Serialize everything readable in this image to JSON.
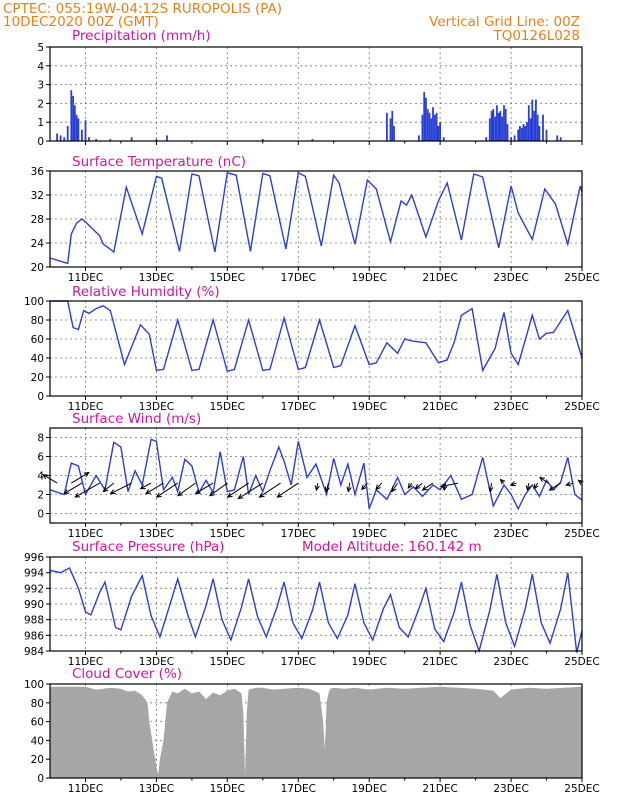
{
  "header": {
    "left_line1": "CPTEC:   055:19W-04:12S   RUROPOLIS (PA)",
    "left_line2": "10DEC2020 00Z (GMT)",
    "right_line1": "Vertical Grid Line: 00Z",
    "right_line2": "TQ0126L028"
  },
  "colors": {
    "header_text": "#e8801a",
    "panel_title": "#d4149c",
    "series_line": "#2a3fd4",
    "precip_bars": "#2a3fd4",
    "wind_arrows": "#000000",
    "cloud_fill": "#a6a6a6"
  },
  "chart_data": [
    {
      "id": "precip",
      "type": "bar",
      "title": "Precipitation (mm/h)",
      "x_range": [
        10,
        25
      ],
      "ylim": [
        0,
        5
      ],
      "yticks": [
        0,
        1,
        2,
        3,
        4,
        5
      ],
      "grid": true,
      "show_xlabels": false,
      "x": [
        10.2,
        10.3,
        10.4,
        10.5,
        10.6,
        10.65,
        10.7,
        10.75,
        10.8,
        10.9,
        11.0,
        11.1,
        11.3,
        11.7,
        12.3,
        13.0,
        13.3,
        16.0,
        17.4,
        19.5,
        19.6,
        19.65,
        19.7,
        20.4,
        20.5,
        20.55,
        20.6,
        20.65,
        20.7,
        20.75,
        20.8,
        20.85,
        20.9,
        20.95,
        21.0,
        21.1,
        22.3,
        22.4,
        22.45,
        22.5,
        22.55,
        22.6,
        22.65,
        22.7,
        22.75,
        22.8,
        22.85,
        22.9,
        23.0,
        23.1,
        23.2,
        23.25,
        23.3,
        23.35,
        23.4,
        23.45,
        23.5,
        23.55,
        23.6,
        23.65,
        23.7,
        23.75,
        23.8,
        23.9,
        24.0,
        24.3,
        24.4
      ],
      "values": [
        0.4,
        0.3,
        0.2,
        0.8,
        2.7,
        2.4,
        1.9,
        1.4,
        1.2,
        0.6,
        1.1,
        0.2,
        0.1,
        0.1,
        0.2,
        0.1,
        0.3,
        0.1,
        0.1,
        1.5,
        1.2,
        1.6,
        0.8,
        0.3,
        1.4,
        2.6,
        2.3,
        1.7,
        1.5,
        1.2,
        1.8,
        1.4,
        1.5,
        0.8,
        1.0,
        0.2,
        0.2,
        1.2,
        1.6,
        1.7,
        1.3,
        1.9,
        1.5,
        1.6,
        1.3,
        1.9,
        1.7,
        0.9,
        0.2,
        0.3,
        0.6,
        0.8,
        0.7,
        0.9,
        0.8,
        1.0,
        1.9,
        1.2,
        2.2,
        1.6,
        2.2,
        1.4,
        0.8,
        1.4,
        0.6,
        0.3,
        0.2
      ]
    },
    {
      "id": "temp",
      "type": "line",
      "title": "Surface Temperature (nC)",
      "x_range": [
        10,
        25
      ],
      "ylim": [
        20,
        36
      ],
      "yticks": [
        20,
        24,
        28,
        32,
        36
      ],
      "grid": true,
      "show_xlabels": true,
      "x": [
        10.0,
        10.5,
        10.6,
        10.75,
        10.9,
        11.0,
        11.4,
        11.5,
        11.65,
        11.8,
        12.15,
        12.6,
        13.0,
        13.15,
        13.65,
        14.0,
        14.2,
        14.65,
        15.0,
        15.25,
        15.65,
        16.0,
        16.2,
        16.65,
        17.0,
        17.2,
        17.65,
        18.0,
        18.15,
        18.6,
        18.95,
        19.2,
        19.6,
        19.9,
        20.05,
        20.2,
        20.6,
        20.95,
        21.2,
        21.6,
        21.95,
        22.2,
        22.65,
        23.0,
        23.2,
        23.6,
        23.95,
        24.25,
        24.6,
        24.95,
        25.0
      ],
      "values": [
        21.5,
        20.6,
        25.5,
        27.3,
        28.0,
        27.5,
        25.2,
        23.8,
        23.2,
        22.5,
        33.3,
        25.5,
        35.1,
        34.8,
        22.6,
        35.5,
        35.2,
        22.5,
        35.7,
        35.3,
        22.6,
        35.6,
        35.2,
        23.0,
        35.7,
        35.1,
        23.5,
        35.3,
        34.0,
        23.8,
        34.5,
        33.0,
        24.2,
        31.0,
        30.3,
        32.0,
        25.0,
        31.0,
        34.0,
        24.5,
        35.5,
        35.0,
        23.2,
        33.5,
        29.0,
        24.6,
        33.0,
        30.5,
        23.8,
        33.5,
        32.5
      ]
    },
    {
      "id": "rh",
      "type": "line",
      "title": "Relative Humidity (%)",
      "x_range": [
        10,
        25
      ],
      "ylim": [
        0,
        100
      ],
      "yticks": [
        0,
        20,
        40,
        60,
        80,
        100
      ],
      "grid": true,
      "show_xlabels": true,
      "x": [
        10.0,
        10.5,
        10.65,
        10.8,
        10.95,
        11.1,
        11.3,
        11.5,
        11.7,
        12.1,
        12.55,
        12.8,
        13.0,
        13.2,
        13.6,
        14.0,
        14.2,
        14.6,
        15.0,
        15.2,
        15.6,
        16.0,
        16.2,
        16.6,
        17.0,
        17.2,
        17.6,
        18.0,
        18.2,
        18.6,
        19.0,
        19.2,
        19.5,
        19.8,
        20.0,
        20.2,
        20.6,
        20.95,
        21.2,
        21.4,
        21.6,
        21.9,
        22.2,
        22.55,
        22.8,
        23.0,
        23.2,
        23.6,
        23.8,
        24.0,
        24.2,
        24.6,
        25.0
      ],
      "values": [
        100,
        100,
        72,
        70,
        90,
        87,
        92,
        95,
        90,
        33,
        75,
        65,
        27,
        28,
        80,
        27,
        28,
        80,
        26,
        28,
        80,
        27,
        28,
        82,
        28,
        30,
        80,
        30,
        32,
        74,
        33,
        35,
        56,
        45,
        60,
        58,
        56,
        35,
        38,
        57,
        85,
        92,
        27,
        50,
        88,
        45,
        33,
        85,
        60,
        66,
        67,
        90,
        40
      ]
    },
    {
      "id": "wind",
      "type": "line",
      "title": "Surface Wind (m/s)",
      "x_range": [
        10,
        25
      ],
      "ylim": [
        -1,
        9
      ],
      "yticks": [
        0,
        2,
        4,
        6,
        8
      ],
      "grid": true,
      "show_xlabels": true,
      "x": [
        10.0,
        10.4,
        10.6,
        10.8,
        11.0,
        11.3,
        11.55,
        11.8,
        12.0,
        12.2,
        12.4,
        12.6,
        12.85,
        13.0,
        13.2,
        13.45,
        13.6,
        13.8,
        14.0,
        14.2,
        14.4,
        14.6,
        14.8,
        15.0,
        15.2,
        15.45,
        15.6,
        15.8,
        16.0,
        16.2,
        16.45,
        16.6,
        16.8,
        17.0,
        17.25,
        17.5,
        17.8,
        18.0,
        18.2,
        18.4,
        18.6,
        18.85,
        19.0,
        19.2,
        19.5,
        19.8,
        20.0,
        20.25,
        20.5,
        20.8,
        21.0,
        21.3,
        21.6,
        21.9,
        22.2,
        22.5,
        22.8,
        23.0,
        23.2,
        23.4,
        23.6,
        23.8,
        24.0,
        24.2,
        24.4,
        24.6,
        24.8,
        25.0
      ],
      "values": [
        2.5,
        2.0,
        5.3,
        5.0,
        2.0,
        4.0,
        2.5,
        7.5,
        7.0,
        2.3,
        4.5,
        3.0,
        7.8,
        7.6,
        2.5,
        3.8,
        2.3,
        5.7,
        5.0,
        2.2,
        3.5,
        2.2,
        6.5,
        2.3,
        2.5,
        6.0,
        2.0,
        4.0,
        2.3,
        4.5,
        7.0,
        5.5,
        3.0,
        7.6,
        3.8,
        5.2,
        2.0,
        5.8,
        3.0,
        5.2,
        2.0,
        5.3,
        0.5,
        2.5,
        1.5,
        3.8,
        2.0,
        2.8,
        1.8,
        3.0,
        2.5,
        4.0,
        1.5,
        2.0,
        5.9,
        0.8,
        3.0,
        2.0,
        0.5,
        2.0,
        3.0,
        1.8,
        3.5,
        2.5,
        3.3,
        5.9,
        2.0,
        1.4
      ],
      "arrows": [
        {
          "x": 10.2,
          "u": -2.0,
          "v": 1.2
        },
        {
          "x": 10.6,
          "u": 2.5,
          "v": 1.5
        },
        {
          "x": 10.9,
          "u": -2.5,
          "v": -1.5
        },
        {
          "x": 11.4,
          "u": -3.5,
          "v": -2.0
        },
        {
          "x": 11.8,
          "u": -1.5,
          "v": -1.2
        },
        {
          "x": 12.3,
          "u": -3.0,
          "v": -1.5
        },
        {
          "x": 12.85,
          "u": -1.5,
          "v": -0.8
        },
        {
          "x": 13.2,
          "u": -2.5,
          "v": -1.5
        },
        {
          "x": 13.6,
          "u": -3.0,
          "v": -2.0
        },
        {
          "x": 14.1,
          "u": -2.5,
          "v": -1.8
        },
        {
          "x": 14.6,
          "u": -2.5,
          "v": -1.5
        },
        {
          "x": 15.0,
          "u": -2.5,
          "v": -1.8
        },
        {
          "x": 15.6,
          "u": -3.0,
          "v": -2.0
        },
        {
          "x": 16.0,
          "u": -3.5,
          "v": -2.2
        },
        {
          "x": 16.5,
          "u": -3.0,
          "v": -2.0
        },
        {
          "x": 17.0,
          "u": -3.0,
          "v": -2.0
        },
        {
          "x": 17.55,
          "u": -0.2,
          "v": -1.0
        },
        {
          "x": 17.85,
          "u": -0.3,
          "v": -1.2
        },
        {
          "x": 18.45,
          "u": -0.2,
          "v": -1.2
        },
        {
          "x": 18.95,
          "u": -0.8,
          "v": -0.9
        },
        {
          "x": 19.35,
          "u": -0.8,
          "v": -0.9
        },
        {
          "x": 19.8,
          "u": -0.8,
          "v": -1.2
        },
        {
          "x": 20.2,
          "u": -0.5,
          "v": -0.7
        },
        {
          "x": 20.5,
          "u": -1.0,
          "v": -0.8
        },
        {
          "x": 20.8,
          "u": -1.5,
          "v": -1.0
        },
        {
          "x": 21.15,
          "u": -0.2,
          "v": -1.0
        },
        {
          "x": 21.5,
          "u": -2.5,
          "v": -0.5
        },
        {
          "x": 22.45,
          "u": -0.2,
          "v": -1.2
        },
        {
          "x": 22.8,
          "u": -0.5,
          "v": 0.5
        },
        {
          "x": 23.15,
          "u": -0.8,
          "v": -0.3
        },
        {
          "x": 23.5,
          "u": -0.2,
          "v": -1.0
        },
        {
          "x": 23.75,
          "u": -0.5,
          "v": -0.8
        },
        {
          "x": 24.05,
          "u": -1.2,
          "v": 0.8
        },
        {
          "x": 24.4,
          "u": -1.6,
          "v": -1.0
        },
        {
          "x": 24.75,
          "u": -1.0,
          "v": -0.3
        },
        {
          "x": 25.0,
          "u": -0.5,
          "v": 0.4
        }
      ]
    },
    {
      "id": "pressure",
      "type": "line",
      "title": "Surface Pressure (hPa)",
      "annotation": "Model Altitude: 160.142 m",
      "x_range": [
        10,
        25
      ],
      "ylim": [
        984,
        996
      ],
      "yticks": [
        984,
        986,
        988,
        990,
        992,
        994,
        996
      ],
      "grid": true,
      "show_xlabels": true,
      "x": [
        10.0,
        10.3,
        10.55,
        10.8,
        11.0,
        11.15,
        11.4,
        11.55,
        11.85,
        12.0,
        12.3,
        12.6,
        12.85,
        13.1,
        13.4,
        13.6,
        13.9,
        14.1,
        14.4,
        14.6,
        14.85,
        15.1,
        15.4,
        15.6,
        15.85,
        16.1,
        16.4,
        16.6,
        16.85,
        17.1,
        17.4,
        17.6,
        17.85,
        18.1,
        18.4,
        18.6,
        18.85,
        19.1,
        19.4,
        19.6,
        19.85,
        20.1,
        20.4,
        20.6,
        20.85,
        21.1,
        21.4,
        21.6,
        21.85,
        22.1,
        22.4,
        22.6,
        22.85,
        23.1,
        23.4,
        23.6,
        23.85,
        24.1,
        24.4,
        24.6,
        24.85,
        25.0
      ],
      "values": [
        994.3,
        994.0,
        994.6,
        992.0,
        989.0,
        988.6,
        991.5,
        992.8,
        987.0,
        986.7,
        991.0,
        993.6,
        988.5,
        985.8,
        990.2,
        993.2,
        988.4,
        985.8,
        989.8,
        993.2,
        988.0,
        985.4,
        989.6,
        993.2,
        988.4,
        985.8,
        989.6,
        992.8,
        987.6,
        985.6,
        989.2,
        992.8,
        987.6,
        985.6,
        988.6,
        992.6,
        987.6,
        985.4,
        989.4,
        991.2,
        987.0,
        985.8,
        989.4,
        992.0,
        986.8,
        985.2,
        989.0,
        992.8,
        987.2,
        984.0,
        989.2,
        993.8,
        987.6,
        984.6,
        989.4,
        993.8,
        987.6,
        985.0,
        989.4,
        994.0,
        983.8,
        986.6
      ]
    },
    {
      "id": "cloud",
      "type": "area",
      "title": "Cloud Cover (%)",
      "x_range": [
        10,
        25
      ],
      "ylim": [
        0,
        100
      ],
      "yticks": [
        0,
        20,
        40,
        60,
        80,
        100
      ],
      "grid": true,
      "show_xlabels": true,
      "x": [
        10.0,
        11.0,
        11.3,
        11.5,
        11.7,
        12.0,
        12.2,
        12.4,
        12.6,
        12.75,
        12.8,
        12.9,
        13.0,
        13.05,
        13.1,
        13.2,
        13.3,
        13.45,
        13.6,
        13.8,
        14.0,
        14.2,
        14.4,
        14.6,
        14.8,
        15.0,
        15.2,
        15.4,
        15.45,
        15.5,
        15.55,
        15.6,
        15.8,
        16.0,
        16.3,
        16.6,
        17.0,
        17.3,
        17.5,
        17.6,
        17.7,
        17.75,
        17.8,
        17.85,
        17.9,
        18.0,
        18.3,
        18.6,
        19.0,
        19.5,
        20.0,
        20.5,
        21.0,
        21.5,
        22.0,
        22.5,
        22.7,
        23.0,
        23.5,
        24.0,
        24.5,
        25.0
      ],
      "values": [
        97,
        97,
        94,
        95,
        96,
        95,
        92,
        93,
        88,
        80,
        60,
        35,
        12,
        4,
        20,
        40,
        80,
        92,
        90,
        95,
        90,
        92,
        84,
        91,
        88,
        93,
        95,
        90,
        70,
        2,
        70,
        94,
        96,
        96,
        94,
        95,
        96,
        95,
        92,
        90,
        60,
        30,
        80,
        90,
        95,
        96,
        95,
        96,
        94,
        96,
        95,
        96,
        97,
        96,
        95,
        93,
        85,
        94,
        96,
        95,
        96,
        97
      ]
    }
  ],
  "x_tick_days": [
    11,
    13,
    15,
    17,
    19,
    21,
    23,
    25
  ],
  "x_tick_labels": [
    "11DEC",
    "13DEC",
    "15DEC",
    "17DEC",
    "19DEC",
    "21DEC",
    "23DEC",
    "25DEC"
  ]
}
